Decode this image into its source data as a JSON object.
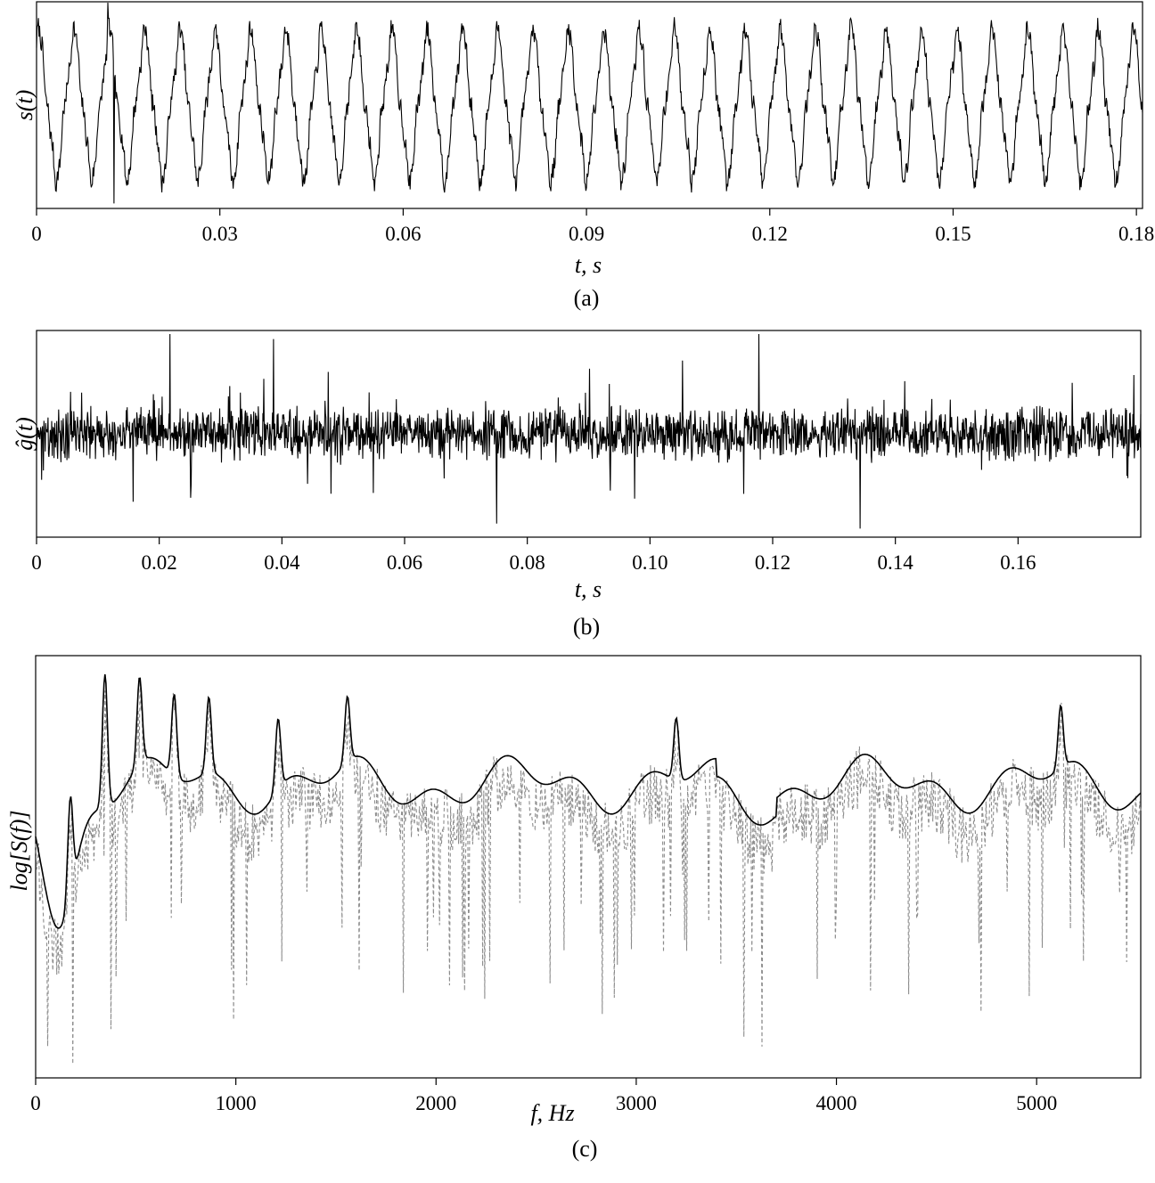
{
  "chart_data": [
    {
      "type": "line",
      "panel": "(a)",
      "xlabel": "t, s",
      "ylabel": "s(t)",
      "xlim": [
        0,
        0.181
      ],
      "xticks": [
        "0",
        "0.03",
        "0.06",
        "0.09",
        "0.12",
        "0.15",
        "0.18"
      ],
      "xtick_values": [
        0,
        0.03,
        0.06,
        0.09,
        0.12,
        0.15,
        0.18
      ],
      "series": [
        {
          "period_s": 0.00578,
          "description": "periodic waveform with small noise"
        }
      ],
      "grid": false
    },
    {
      "type": "line",
      "panel": "(b)",
      "xlabel": "t, s",
      "ylabel": "ĝ(t)",
      "xlim": [
        0,
        0.18
      ],
      "xticks": [
        "0",
        "0.02",
        "0.04",
        "0.06",
        "0.08",
        "0.10",
        "0.12",
        "0.14",
        "0.16"
      ],
      "xtick_values": [
        0,
        0.02,
        0.04,
        0.06,
        0.08,
        0.1,
        0.12,
        0.14,
        0.16
      ],
      "series": [
        {
          "description": "noise-like residual with sparse spikes"
        }
      ],
      "grid": false
    },
    {
      "type": "line",
      "panel": "(c)",
      "xlabel": "f, Hz",
      "ylabel": "log[S(f)]",
      "xlim": [
        0,
        5520
      ],
      "xticks": [
        "0",
        "1000",
        "2000",
        "3000",
        "4000",
        "5000"
      ],
      "xtick_values": [
        0,
        1000,
        2000,
        3000,
        4000,
        5000
      ],
      "series": [
        {
          "style": "solid",
          "peaks_hz": [
            173,
            346,
            519,
            692,
            865,
            1211,
            1557,
            3200,
            5120
          ]
        },
        {
          "style": "dashed"
        }
      ],
      "grid": false
    }
  ],
  "colors": {
    "solid": "#000000",
    "dashed": "#8c8c8c"
  }
}
